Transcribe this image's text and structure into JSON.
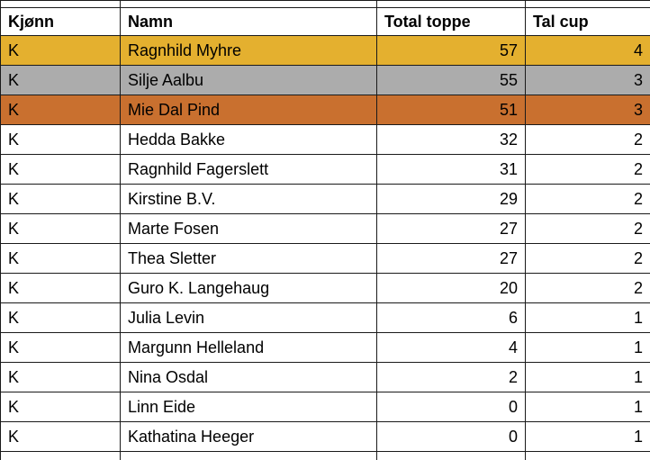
{
  "table": {
    "columns": [
      {
        "label": "Kjønn"
      },
      {
        "label": "Namn"
      },
      {
        "label": "Total toppe"
      },
      {
        "label": "Tal cup"
      }
    ],
    "rows": [
      {
        "kjonn": "K",
        "namn": "Ragnhild Myhre",
        "total": "57",
        "cup": "4",
        "highlight": "gold"
      },
      {
        "kjonn": "K",
        "namn": "Silje Aalbu",
        "total": "55",
        "cup": "3",
        "highlight": "silver"
      },
      {
        "kjonn": "K",
        "namn": "Mie Dal Pind",
        "total": "51",
        "cup": "3",
        "highlight": "bronze"
      },
      {
        "kjonn": "K",
        "namn": "Hedda Bakke",
        "total": "32",
        "cup": "2",
        "highlight": "none"
      },
      {
        "kjonn": "K",
        "namn": "Ragnhild Fagerslett",
        "total": "31",
        "cup": "2",
        "highlight": "none"
      },
      {
        "kjonn": "K",
        "namn": "Kirstine B.V.",
        "total": "29",
        "cup": "2",
        "highlight": "none"
      },
      {
        "kjonn": "K",
        "namn": "Marte Fosen",
        "total": "27",
        "cup": "2",
        "highlight": "none"
      },
      {
        "kjonn": "K",
        "namn": "Thea Sletter",
        "total": "27",
        "cup": "2",
        "highlight": "none"
      },
      {
        "kjonn": "K",
        "namn": "Guro K. Langehaug",
        "total": "20",
        "cup": "2",
        "highlight": "none"
      },
      {
        "kjonn": "K",
        "namn": "Julia Levin",
        "total": "6",
        "cup": "1",
        "highlight": "none"
      },
      {
        "kjonn": "K",
        "namn": "Margunn Helleland",
        "total": "4",
        "cup": "1",
        "highlight": "none"
      },
      {
        "kjonn": "K",
        "namn": "Nina Osdal",
        "total": "2",
        "cup": "1",
        "highlight": "none"
      },
      {
        "kjonn": "K",
        "namn": "Linn Eide",
        "total": "0",
        "cup": "1",
        "highlight": "none"
      },
      {
        "kjonn": "K",
        "namn": "Kathatina Heeger",
        "total": "0",
        "cup": "1",
        "highlight": "none"
      }
    ],
    "colors": {
      "gold": "#E4B02F",
      "silver": "#ACACAC",
      "bronze": "#C9702F",
      "border": "#1a1a1a"
    }
  }
}
